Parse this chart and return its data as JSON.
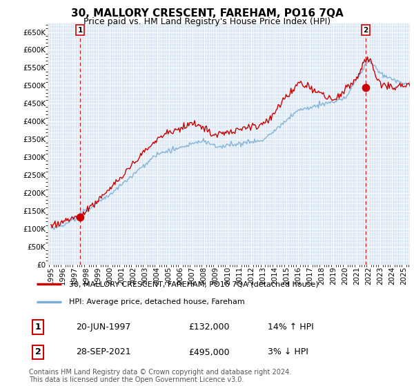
{
  "title": "30, MALLORY CRESCENT, FAREHAM, PO16 7QA",
  "subtitle": "Price paid vs. HM Land Registry's House Price Index (HPI)",
  "ylabel_ticks": [
    "£0",
    "£50K",
    "£100K",
    "£150K",
    "£200K",
    "£250K",
    "£300K",
    "£350K",
    "£400K",
    "£450K",
    "£500K",
    "£550K",
    "£600K",
    "£650K"
  ],
  "ytick_values": [
    0,
    50000,
    100000,
    150000,
    200000,
    250000,
    300000,
    350000,
    400000,
    450000,
    500000,
    550000,
    600000,
    650000
  ],
  "ylim": [
    0,
    675000
  ],
  "xlim_start": 1994.7,
  "xlim_end": 2025.5,
  "sale1_x": 1997.47,
  "sale1_y": 132000,
  "sale1_label": "1",
  "sale1_date": "20-JUN-1997",
  "sale1_price": "£132,000",
  "sale1_hpi": "14% ↑ HPI",
  "sale2_x": 2021.74,
  "sale2_y": 495000,
  "sale2_label": "2",
  "sale2_date": "28-SEP-2021",
  "sale2_price": "£495,000",
  "sale2_hpi": "3% ↓ HPI",
  "legend_line1": "30, MALLORY CRESCENT, FAREHAM, PO16 7QA (detached house)",
  "legend_line2": "HPI: Average price, detached house, Fareham",
  "footer": "Contains HM Land Registry data © Crown copyright and database right 2024.\nThis data is licensed under the Open Government Licence v3.0.",
  "line_color_red": "#cc0000",
  "line_color_blue": "#7aadd4",
  "background_color": "#dce9f5",
  "plot_bg": "#dce9f5",
  "grid_color": "#ffffff",
  "title_fontsize": 11,
  "subtitle_fontsize": 9
}
